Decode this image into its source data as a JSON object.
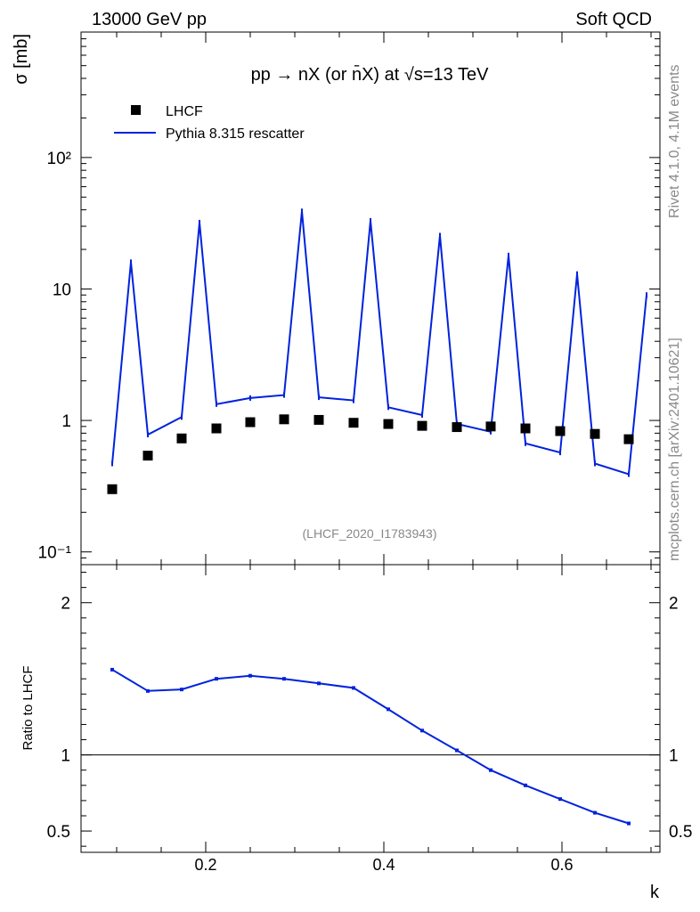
{
  "header": {
    "left": "13000 GeV pp",
    "right": "Soft QCD"
  },
  "side_labels": {
    "rivet": "Rivet 4.1.0,  4.1M events",
    "mcplots": "mcplots.cern.ch [arXiv:2401.10621]"
  },
  "chart_data": [
    {
      "type": "scatter",
      "panel": "main",
      "title": "pp → nX (or n̄X) at √s=13 TeV",
      "ylabel": "σ [mb]",
      "xlabel": "",
      "yscale": "log",
      "xlim": [
        0.06,
        0.71
      ],
      "ylim": [
        0.08,
        900
      ],
      "y_tick_labels": [
        "10⁻¹",
        "1",
        "10",
        "10²"
      ],
      "y_tick_values": [
        0.1,
        1,
        10,
        100
      ],
      "legend_position": "top-left",
      "watermark": "(LHCF_2020_I1783943)",
      "series": [
        {
          "name": "LHCF",
          "style": "markers",
          "color": "#000000",
          "x": [
            0.095,
            0.135,
            0.173,
            0.212,
            0.25,
            0.288,
            0.327,
            0.366,
            0.405,
            0.443,
            0.482,
            0.52,
            0.559,
            0.598,
            0.637,
            0.675
          ],
          "y": [
            0.3,
            0.54,
            0.73,
            0.87,
            0.97,
            1.02,
            1.01,
            0.96,
            0.94,
            0.91,
            0.89,
            0.9,
            0.87,
            0.83,
            0.79,
            0.72
          ]
        },
        {
          "name": "Pythia 8.315 rescatter",
          "style": "line",
          "color": "#0022dd",
          "x": [
            0.095,
            0.116,
            0.135,
            0.173,
            0.193,
            0.212,
            0.25,
            0.288,
            0.308,
            0.327,
            0.366,
            0.385,
            0.405,
            0.443,
            0.463,
            0.482,
            0.52,
            0.54,
            0.559,
            0.598,
            0.617,
            0.637,
            0.675,
            0.695
          ],
          "y": [
            0.47,
            16,
            0.78,
            1.06,
            32,
            1.33,
            1.48,
            1.56,
            39,
            1.5,
            1.42,
            33,
            1.26,
            1.1,
            25.5,
            0.94,
            0.82,
            18,
            0.67,
            0.57,
            13,
            0.47,
            0.39,
            9
          ]
        }
      ]
    },
    {
      "type": "line",
      "panel": "ratio",
      "ylabel": "Ratio to LHCF",
      "xlabel": "k",
      "xlim": [
        0.06,
        0.71
      ],
      "ylim": [
        0.36,
        2.25
      ],
      "x_tick_labels": [
        "0.2",
        "0.4",
        "0.6"
      ],
      "x_tick_values": [
        0.2,
        0.4,
        0.6
      ],
      "y_tick_labels": [
        "0.5",
        "1",
        "2"
      ],
      "y_tick_values": [
        0.5,
        1,
        2
      ],
      "reference_line": 1,
      "series": [
        {
          "name": "Pythia 8.315 rescatter / LHCF",
          "color": "#0022dd",
          "x": [
            0.095,
            0.135,
            0.173,
            0.212,
            0.25,
            0.288,
            0.327,
            0.366,
            0.405,
            0.443,
            0.482,
            0.52,
            0.559,
            0.598,
            0.637,
            0.675
          ],
          "y": [
            1.56,
            1.42,
            1.43,
            1.5,
            1.52,
            1.5,
            1.47,
            1.44,
            1.3,
            1.16,
            1.03,
            0.9,
            0.8,
            0.71,
            0.62,
            0.55
          ]
        }
      ]
    }
  ]
}
